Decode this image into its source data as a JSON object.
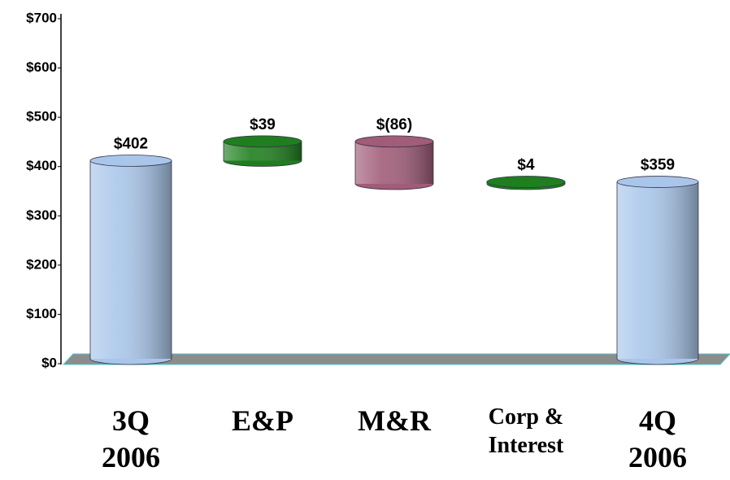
{
  "chart_data": {
    "type": "waterfall",
    "categories": [
      "3Q 2006",
      "E&P",
      "M&R",
      "Corp & Interest",
      "4Q 2006"
    ],
    "values": [
      402,
      39,
      -86,
      4,
      359
    ],
    "value_labels": [
      "$402",
      "$39",
      "$(86)",
      "$4",
      "$359"
    ],
    "colors": [
      "#a9c6ea",
      "#1f7f1f",
      "#a05c78",
      "#1f7f1f",
      "#a9c6ea"
    ],
    "ylim": [
      0,
      700
    ],
    "yticks": [
      {
        "value": 0,
        "label": "$0"
      },
      {
        "value": 100,
        "label": "$100"
      },
      {
        "value": 200,
        "label": "$200"
      },
      {
        "value": 300,
        "label": "$300"
      },
      {
        "value": 400,
        "label": "$400"
      },
      {
        "value": 500,
        "label": "$500"
      },
      {
        "value": 600,
        "label": "$600"
      },
      {
        "value": 700,
        "label": "$700"
      }
    ]
  }
}
